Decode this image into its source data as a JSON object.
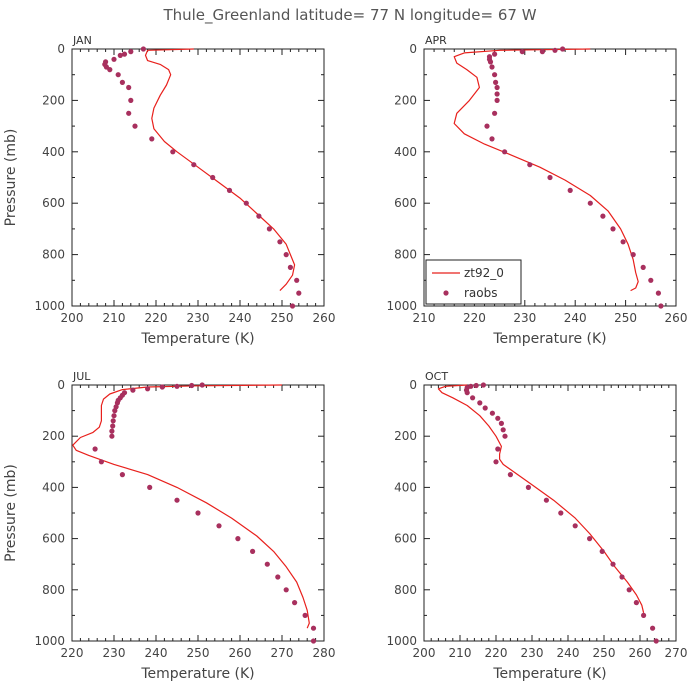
{
  "title": "Thule_Greenland  latitude= 77 N longitude= 67 W",
  "legend": {
    "model_label": "zt92_0",
    "obs_label": "raobs",
    "model_color": "#e8201c",
    "obs_color": "#a8305e"
  },
  "chart_data": [
    {
      "type": "line",
      "panel": "JAN",
      "xlabel": "Temperature (K)",
      "ylabel": "Pressure (mb)",
      "xlim": [
        200,
        260
      ],
      "ylim": [
        1000,
        0
      ],
      "xticks": [
        200,
        210,
        220,
        230,
        240,
        250,
        260
      ],
      "yticks": [
        0,
        200,
        400,
        600,
        800,
        1000
      ],
      "legend": false,
      "series": [
        {
          "name": "zt92_0",
          "kind": "line",
          "points": [
            [
              229,
              0
            ],
            [
              218,
              5
            ],
            [
              217.5,
              25
            ],
            [
              218,
              45
            ],
            [
              221,
              60
            ],
            [
              223,
              80
            ],
            [
              223.5,
              100
            ],
            [
              222.5,
              140
            ],
            [
              221,
              180
            ],
            [
              219.5,
              230
            ],
            [
              219,
              270
            ],
            [
              219.5,
              310
            ],
            [
              222,
              360
            ],
            [
              225,
              400
            ],
            [
              230,
              460
            ],
            [
              235,
              520
            ],
            [
              240,
              580
            ],
            [
              244,
              640
            ],
            [
              248,
              700
            ],
            [
              251,
              760
            ],
            [
              252,
              800
            ],
            [
              253,
              840
            ],
            [
              252.5,
              880
            ],
            [
              251,
              915
            ],
            [
              249.5,
              940
            ]
          ]
        },
        {
          "name": "raobs",
          "kind": "scatter",
          "points": [
            [
              217,
              0
            ],
            [
              214,
              10
            ],
            [
              212.5,
              20
            ],
            [
              211.5,
              25
            ],
            [
              210,
              40
            ],
            [
              208,
              50
            ],
            [
              207.8,
              60
            ],
            [
              208.2,
              70
            ],
            [
              209,
              80
            ],
            [
              211,
              100
            ],
            [
              212,
              130
            ],
            [
              213.5,
              150
            ],
            [
              214,
              200
            ],
            [
              213.5,
              250
            ],
            [
              215,
              300
            ],
            [
              219,
              350
            ],
            [
              224,
              400
            ],
            [
              229,
              450
            ],
            [
              233.5,
              500
            ],
            [
              237.5,
              550
            ],
            [
              241.5,
              600
            ],
            [
              244.5,
              650
            ],
            [
              247,
              700
            ],
            [
              249.5,
              750
            ],
            [
              251,
              800
            ],
            [
              252,
              850
            ],
            [
              253.5,
              900
            ],
            [
              254,
              950
            ],
            [
              252.5,
              1000
            ]
          ]
        }
      ]
    },
    {
      "type": "line",
      "panel": "APR",
      "xlabel": "Temperature (K)",
      "ylabel": "",
      "xlim": [
        210,
        260
      ],
      "ylim": [
        1000,
        0
      ],
      "xticks": [
        210,
        220,
        230,
        240,
        250,
        260
      ],
      "yticks": [
        0,
        200,
        400,
        600,
        800,
        1000
      ],
      "legend": true,
      "series": [
        {
          "name": "zt92_0",
          "kind": "line",
          "points": [
            [
              243,
              0
            ],
            [
              225,
              5
            ],
            [
              218,
              15
            ],
            [
              216,
              30
            ],
            [
              216.5,
              55
            ],
            [
              218.5,
              80
            ],
            [
              220.5,
              110
            ],
            [
              221,
              150
            ],
            [
              219,
              200
            ],
            [
              216.5,
              250
            ],
            [
              216,
              290
            ],
            [
              218,
              330
            ],
            [
              222,
              370
            ],
            [
              227,
              410
            ],
            [
              233,
              460
            ],
            [
              238,
              510
            ],
            [
              243,
              570
            ],
            [
              246.5,
              630
            ],
            [
              249,
              700
            ],
            [
              250.5,
              760
            ],
            [
              251.5,
              820
            ],
            [
              252,
              870
            ],
            [
              252.5,
              905
            ],
            [
              252,
              930
            ],
            [
              251,
              940
            ]
          ]
        },
        {
          "name": "raobs",
          "kind": "scatter",
          "points": [
            [
              237.5,
              0
            ],
            [
              236,
              5
            ],
            [
              233.5,
              10
            ],
            [
              229.5,
              10
            ],
            [
              224,
              20
            ],
            [
              223,
              30
            ],
            [
              223,
              40
            ],
            [
              223.2,
              50
            ],
            [
              223.5,
              70
            ],
            [
              224,
              100
            ],
            [
              224.2,
              130
            ],
            [
              224.5,
              150
            ],
            [
              224.5,
              175
            ],
            [
              224.5,
              200
            ],
            [
              224,
              250
            ],
            [
              222.5,
              300
            ],
            [
              223.5,
              350
            ],
            [
              226,
              400
            ],
            [
              231,
              450
            ],
            [
              235,
              500
            ],
            [
              239,
              550
            ],
            [
              243,
              600
            ],
            [
              245.5,
              650
            ],
            [
              247.5,
              700
            ],
            [
              249.5,
              750
            ],
            [
              251.5,
              800
            ],
            [
              253.5,
              850
            ],
            [
              255,
              900
            ],
            [
              256.5,
              950
            ],
            [
              257,
              1000
            ]
          ]
        }
      ]
    },
    {
      "type": "line",
      "panel": "JUL",
      "xlabel": "Temperature (K)",
      "ylabel": "Pressure (mb)",
      "xlim": [
        220,
        280
      ],
      "ylim": [
        1000,
        0
      ],
      "xticks": [
        220,
        230,
        240,
        250,
        260,
        270,
        280
      ],
      "yticks": [
        0,
        200,
        400,
        600,
        800,
        1000
      ],
      "legend": false,
      "series": [
        {
          "name": "zt92_0",
          "kind": "line",
          "points": [
            [
              270,
              0
            ],
            [
              250,
              3
            ],
            [
              238,
              8
            ],
            [
              232,
              18
            ],
            [
              229,
              35
            ],
            [
              227.5,
              55
            ],
            [
              227,
              80
            ],
            [
              227,
              110
            ],
            [
              227,
              140
            ],
            [
              226.5,
              165
            ],
            [
              225,
              185
            ],
            [
              222,
              205
            ],
            [
              220.2,
              235
            ],
            [
              221,
              255
            ],
            [
              224,
              275
            ],
            [
              230,
              310
            ],
            [
              238,
              350
            ],
            [
              245,
              400
            ],
            [
              252,
              460
            ],
            [
              258,
              520
            ],
            [
              264,
              590
            ],
            [
              268,
              650
            ],
            [
              271,
              710
            ],
            [
              273.5,
              770
            ],
            [
              275,
              830
            ],
            [
              276,
              880
            ],
            [
              276.5,
              930
            ],
            [
              276,
              950
            ]
          ]
        },
        {
          "name": "raobs",
          "kind": "scatter",
          "points": [
            [
              251,
              0
            ],
            [
              248.5,
              2
            ],
            [
              245,
              5
            ],
            [
              241.5,
              8
            ],
            [
              238,
              15
            ],
            [
              234.5,
              20
            ],
            [
              232.5,
              30
            ],
            [
              232,
              40
            ],
            [
              231.5,
              50
            ],
            [
              231,
              60
            ],
            [
              230.8,
              70
            ],
            [
              230.5,
              85
            ],
            [
              230.2,
              100
            ],
            [
              230,
              120
            ],
            [
              229.8,
              140
            ],
            [
              229.7,
              160
            ],
            [
              229.5,
              180
            ],
            [
              229.5,
              200
            ],
            [
              225.5,
              250
            ],
            [
              227,
              300
            ],
            [
              232,
              350
            ],
            [
              238.5,
              400
            ],
            [
              245,
              450
            ],
            [
              250,
              500
            ],
            [
              255,
              550
            ],
            [
              259.5,
              600
            ],
            [
              263,
              650
            ],
            [
              266.5,
              700
            ],
            [
              269,
              750
            ],
            [
              271,
              800
            ],
            [
              273,
              850
            ],
            [
              275.5,
              900
            ],
            [
              277.5,
              950
            ],
            [
              277.5,
              1000
            ]
          ]
        }
      ]
    },
    {
      "type": "line",
      "panel": "OCT",
      "xlabel": "Temperature (K)",
      "ylabel": "",
      "xlim": [
        200,
        270
      ],
      "ylim": [
        1000,
        0
      ],
      "xticks": [
        200,
        210,
        220,
        230,
        240,
        250,
        260,
        270
      ],
      "yticks": [
        0,
        200,
        400,
        600,
        800,
        1000
      ],
      "legend": false,
      "series": [
        {
          "name": "zt92_0",
          "kind": "line",
          "points": [
            [
              212,
              0
            ],
            [
              206,
              5
            ],
            [
              204,
              15
            ],
            [
              205,
              30
            ],
            [
              208,
              50
            ],
            [
              212,
              80
            ],
            [
              215.5,
              120
            ],
            [
              218,
              160
            ],
            [
              220,
              200
            ],
            [
              221.5,
              240
            ],
            [
              221,
              270
            ],
            [
              221,
              290
            ],
            [
              222,
              310
            ],
            [
              225,
              340
            ],
            [
              230,
              390
            ],
            [
              236,
              450
            ],
            [
              242,
              520
            ],
            [
              246,
              580
            ],
            [
              250,
              650
            ],
            [
              253,
              710
            ],
            [
              256.5,
              770
            ],
            [
              259,
              820
            ],
            [
              260.5,
              860
            ],
            [
              261,
              890
            ]
          ]
        },
        {
          "name": "raobs",
          "kind": "scatter",
          "points": [
            [
              216.5,
              0
            ],
            [
              214.5,
              2
            ],
            [
              213,
              5
            ],
            [
              212,
              10
            ],
            [
              211.8,
              20
            ],
            [
              212,
              30
            ],
            [
              213.5,
              50
            ],
            [
              215.5,
              70
            ],
            [
              217,
              90
            ],
            [
              219,
              110
            ],
            [
              220.5,
              130
            ],
            [
              221.5,
              150
            ],
            [
              222,
              175
            ],
            [
              222.5,
              200
            ],
            [
              220.5,
              250
            ],
            [
              220,
              300
            ],
            [
              224,
              350
            ],
            [
              229,
              400
            ],
            [
              234,
              450
            ],
            [
              238,
              500
            ],
            [
              242,
              550
            ],
            [
              246,
              600
            ],
            [
              249.5,
              650
            ],
            [
              252.5,
              700
            ],
            [
              255,
              750
            ],
            [
              257,
              800
            ],
            [
              259,
              850
            ],
            [
              261,
              900
            ],
            [
              263.5,
              950
            ],
            [
              264.5,
              1000
            ]
          ]
        }
      ]
    }
  ]
}
